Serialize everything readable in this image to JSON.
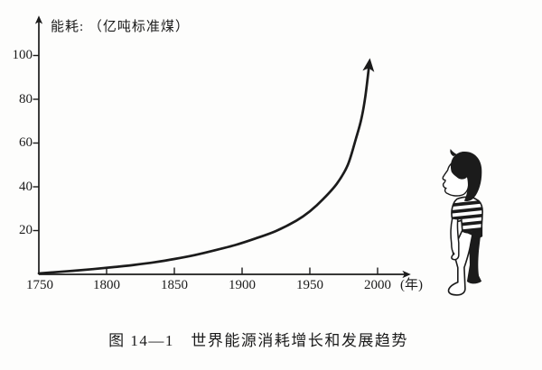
{
  "caption": {
    "text": "图 14—1　世界能源消耗增长和发展趋势"
  },
  "illustration": {
    "name": "child-looking-up-at-curve"
  },
  "chart_data": {
    "type": "line",
    "title": "图 14—1 世界能源消耗增长和发展趋势",
    "ylabel": "能耗: （亿吨标准煤）",
    "xlabel": "(年)",
    "xlim": [
      1750,
      2025
    ],
    "ylim": [
      0,
      120
    ],
    "grid": false,
    "legend": "none",
    "end_marker": "arrow",
    "xticks": [
      1750,
      1800,
      1850,
      1900,
      1950,
      2000
    ],
    "xticklabels": [
      "1750",
      "1800",
      "1850",
      "1900",
      "1950",
      "2000"
    ],
    "yticks": [
      20,
      40,
      60,
      80,
      100
    ],
    "yticklabels": [
      "20",
      "40",
      "60",
      "80",
      "100"
    ],
    "series": [
      {
        "name": "世界能源消耗",
        "x": [
          1750,
          1760,
          1775,
          1790,
          1805,
          1820,
          1835,
          1850,
          1865,
          1880,
          1895,
          1910,
          1925,
          1940,
          1950,
          1960,
          1970,
          1978,
          1984,
          1988,
          1991,
          1994
        ],
        "y": [
          0.4,
          0.9,
          1.6,
          2.4,
          3.3,
          4.3,
          5.5,
          7.0,
          8.8,
          11.0,
          13.4,
          16.4,
          19.8,
          24.5,
          28.8,
          34.5,
          41.5,
          50.0,
          62.0,
          71.0,
          81.5,
          97.0
        ]
      }
    ]
  }
}
